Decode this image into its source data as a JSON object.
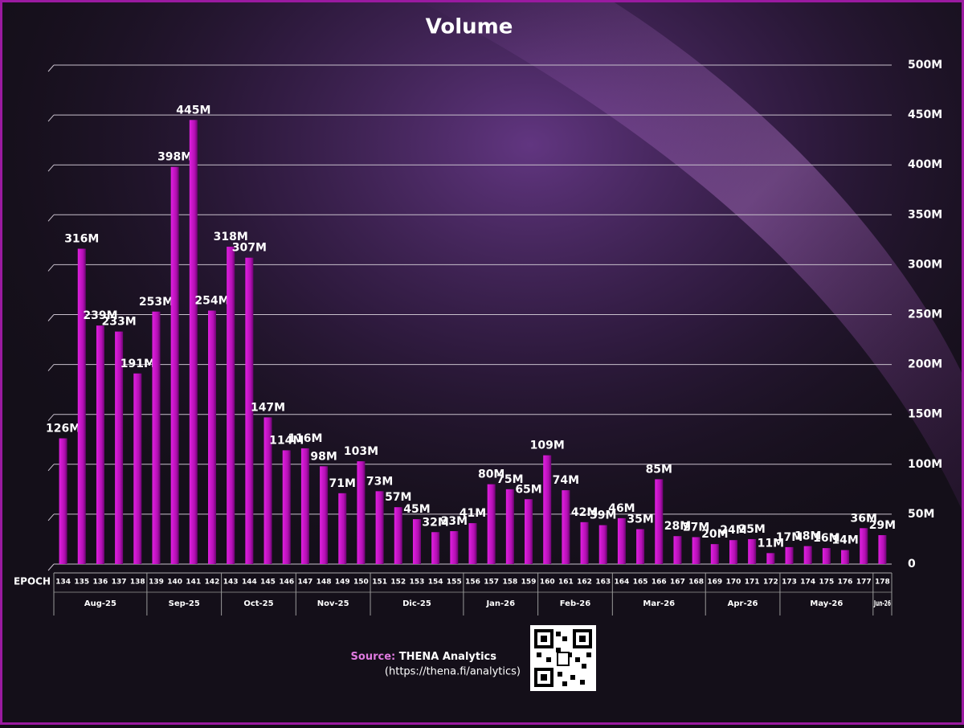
{
  "chart_data": {
    "type": "bar",
    "title": "Volume",
    "x_label": "EPOCH",
    "groups": [
      {
        "label": "Aug-25",
        "categories": [
          "134",
          "135",
          "136",
          "137",
          "138"
        ]
      },
      {
        "label": "Sep-25",
        "categories": [
          "139",
          "140",
          "141",
          "142"
        ]
      },
      {
        "label": "Oct-25",
        "categories": [
          "143",
          "144",
          "145",
          "146"
        ]
      },
      {
        "label": "Nov-25",
        "categories": [
          "147",
          "148",
          "149",
          "150"
        ]
      },
      {
        "label": "Dic-25",
        "categories": [
          "151",
          "152",
          "153",
          "154",
          "155"
        ]
      },
      {
        "label": "Jan-26",
        "categories": [
          "156",
          "157",
          "158",
          "159"
        ]
      },
      {
        "label": "Feb-26",
        "categories": [
          "160",
          "161",
          "162",
          "163"
        ]
      },
      {
        "label": "Mar-26",
        "categories": [
          "164",
          "165",
          "166",
          "167",
          "168"
        ]
      },
      {
        "label": "Apr-26",
        "categories": [
          "169",
          "170",
          "171",
          "172"
        ]
      },
      {
        "label": "May-26",
        "categories": [
          "173",
          "174",
          "175",
          "176",
          "177"
        ]
      },
      {
        "label": "Jun-26",
        "categories": [
          "178"
        ]
      }
    ],
    "values": [
      126,
      316,
      239,
      233,
      191,
      253,
      398,
      445,
      254,
      318,
      307,
      147,
      114,
      116,
      98,
      71,
      103,
      73,
      57,
      45,
      32,
      33,
      41,
      80,
      75,
      65,
      109,
      74,
      42,
      39,
      46,
      35,
      85,
      28,
      27,
      20,
      24,
      25,
      11,
      17,
      18,
      16,
      14,
      36,
      29
    ],
    "value_labels": [
      "126M",
      "316M",
      "239M",
      "233M",
      "191M",
      "253M",
      "398M",
      "445M",
      "254M",
      "318M",
      "307M",
      "147M",
      "114M",
      "116M",
      "98M",
      "71M",
      "103M",
      "73M",
      "57M",
      "45M",
      "32M",
      "33M",
      "41M",
      "80M",
      "75M",
      "65M",
      "109M",
      "74M",
      "42M",
      "39M",
      "46M",
      "35M",
      "85M",
      "28M",
      "27M",
      "20M",
      "24M",
      "25M",
      "11M",
      "17M",
      "18M",
      "16M",
      "14M",
      "36M",
      "29M"
    ],
    "color": "#b40fb4",
    "ylim": [
      0,
      500
    ],
    "yticks": [
      0,
      {
        "value": 50,
        "label": "50M"
      },
      {
        "value": 100,
        "label": "100M"
      },
      {
        "value": 150,
        "label": "150M"
      },
      {
        "value": 200,
        "label": "200M"
      },
      {
        "value": 250,
        "label": "250M"
      },
      {
        "value": 300,
        "label": "300M"
      },
      {
        "value": 350,
        "label": "350M"
      },
      {
        "value": 400,
        "label": "400M"
      },
      {
        "value": 450,
        "label": "450M"
      },
      {
        "value": 500,
        "label": "500M"
      }
    ],
    "grid": true,
    "source": {
      "prefix": "Source:",
      "name": "THENA Analytics",
      "url": "(https://thena.fi/analytics)"
    }
  }
}
